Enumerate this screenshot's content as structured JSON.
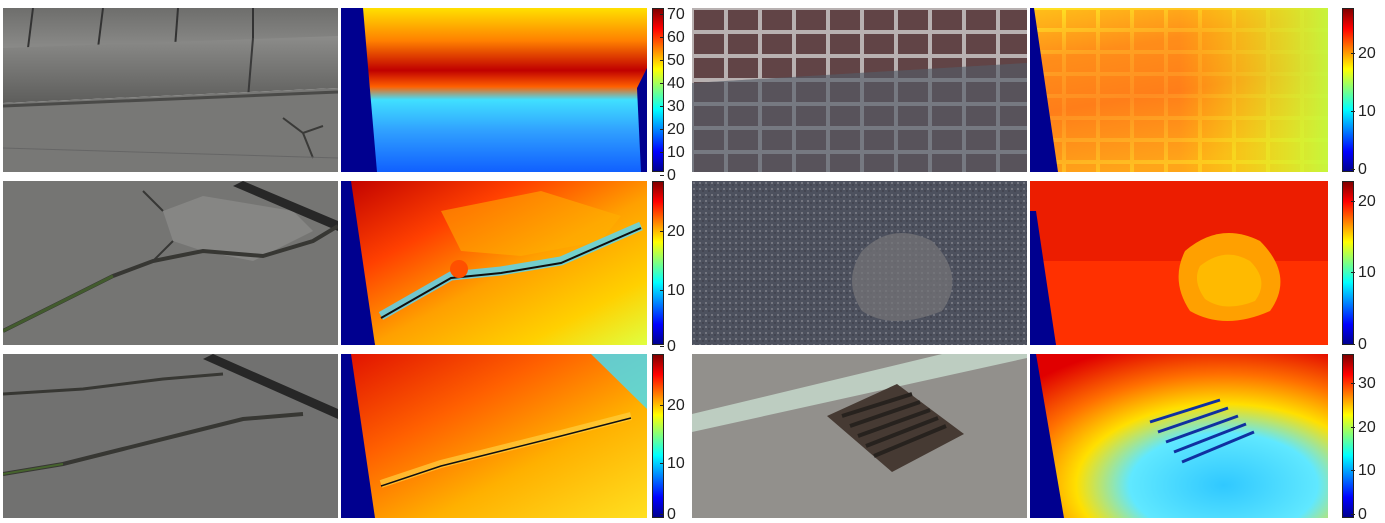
{
  "panels": [
    {
      "id": "curb",
      "scene": "curb",
      "ticks": [
        "70",
        "60",
        "50",
        "40",
        "30",
        "20",
        "10",
        "0"
      ]
    },
    {
      "id": "cobblestone",
      "scene": "cobblestone",
      "ticks": [
        "20",
        "10",
        "0"
      ]
    },
    {
      "id": "crack-1",
      "scene": "crack-1",
      "ticks": [
        "20",
        "10",
        "0"
      ]
    },
    {
      "id": "pothole",
      "scene": "pothole",
      "ticks": [
        "20",
        "10",
        "0"
      ]
    },
    {
      "id": "crack-2",
      "scene": "crack-2",
      "ticks": [
        "20",
        "10",
        "0"
      ]
    },
    {
      "id": "drain",
      "scene": "drain",
      "ticks": [
        "30",
        "20",
        "10",
        "0"
      ]
    }
  ],
  "colormap": "jet"
}
